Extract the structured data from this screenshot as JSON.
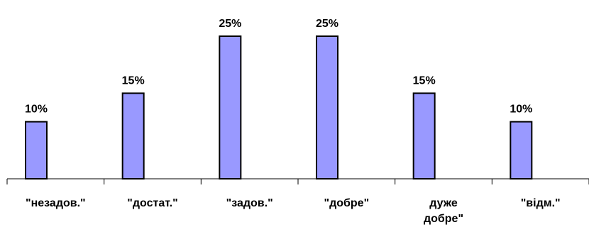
{
  "chart_data": {
    "type": "bar",
    "title": "",
    "xlabel": "",
    "ylabel": "",
    "categories": [
      "\"незадов.\"",
      "\"достат.\"",
      "\"задов.\"",
      "\"добре\"",
      "дуже добре\"",
      "\"відм.\""
    ],
    "category_lines": [
      [
        "\"незадов.\""
      ],
      [
        "\"достат.\""
      ],
      [
        "\"задов.\""
      ],
      [
        "\"добре\""
      ],
      [
        "дуже",
        "добре\""
      ],
      [
        "\"відм.\""
      ]
    ],
    "values": [
      10,
      15,
      25,
      25,
      15,
      10
    ],
    "data_labels": [
      "10%",
      "15%",
      "25%",
      "25%",
      "15%",
      "10%"
    ],
    "unit": "%",
    "ylim": [
      0,
      25
    ],
    "grid": false,
    "legend": "none",
    "bar_color": "#9999ff",
    "bar_edge_color": "#000000"
  }
}
